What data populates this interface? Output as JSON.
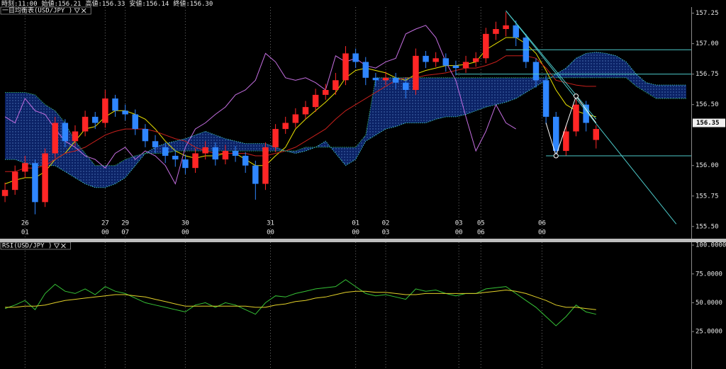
{
  "chart_data": [
    {
      "type": "candlestick",
      "title": "一目均衡表(USD/JPY )",
      "info": [
        "時刻:11:00",
        "始値:156.21",
        "高値:156.33",
        "安値:156.14",
        "終値:156.30"
      ],
      "up_color": "#ff2626",
      "down_color": "#2f86ff",
      "open": [
        155.75,
        155.8,
        155.95,
        156.02,
        155.7,
        156.1,
        156.35,
        156.2,
        156.28,
        156.4,
        156.35,
        156.55,
        156.45,
        156.42,
        156.3,
        156.2,
        156.15,
        156.08,
        156.05,
        155.98,
        156.1,
        156.15,
        156.05,
        156.12,
        156.08,
        156.0,
        155.85,
        156.15,
        156.3,
        156.35,
        156.42,
        156.48,
        156.58,
        156.62,
        156.7,
        156.92,
        156.85,
        156.72,
        156.7,
        156.72,
        156.68,
        156.62,
        156.9,
        156.85,
        156.88,
        156.82,
        156.8,
        156.85,
        156.88,
        157.08,
        157.12,
        157.15,
        157.05,
        156.85,
        156.7,
        156.4,
        156.12,
        156.28,
        156.5,
        156.21
      ],
      "high": [
        155.86,
        156.0,
        156.08,
        156.05,
        156.14,
        156.4,
        156.38,
        156.33,
        156.45,
        156.44,
        156.62,
        156.58,
        156.5,
        156.46,
        156.34,
        156.25,
        156.19,
        156.13,
        156.09,
        156.14,
        156.2,
        156.19,
        156.17,
        156.16,
        156.11,
        156.04,
        156.19,
        156.34,
        156.4,
        156.47,
        156.53,
        156.63,
        156.67,
        156.76,
        156.98,
        156.96,
        156.89,
        156.76,
        156.77,
        156.76,
        156.72,
        156.96,
        156.94,
        156.93,
        156.92,
        156.86,
        156.9,
        156.93,
        157.13,
        157.18,
        157.26,
        157.19,
        157.08,
        156.88,
        156.74,
        156.44,
        156.33,
        156.57,
        156.53,
        156.33
      ],
      "low": [
        155.7,
        155.76,
        155.9,
        155.6,
        155.66,
        156.06,
        156.15,
        156.16,
        156.24,
        156.3,
        156.31,
        156.4,
        156.37,
        156.25,
        156.15,
        156.1,
        156.02,
        155.99,
        155.93,
        155.94,
        156.05,
        156.0,
        156.01,
        156.03,
        155.94,
        155.72,
        155.8,
        156.11,
        156.26,
        156.31,
        156.38,
        156.44,
        156.54,
        156.58,
        156.66,
        156.8,
        156.66,
        156.65,
        156.66,
        156.63,
        156.55,
        156.58,
        156.8,
        156.81,
        156.77,
        156.74,
        156.76,
        156.81,
        156.84,
        157.03,
        157.06,
        156.98,
        156.8,
        156.64,
        156.34,
        156.06,
        156.08,
        156.24,
        156.28,
        156.14
      ],
      "close": [
        155.8,
        155.95,
        156.02,
        155.7,
        156.1,
        156.35,
        156.2,
        156.28,
        156.4,
        156.35,
        156.55,
        156.45,
        156.42,
        156.3,
        156.2,
        156.15,
        156.08,
        156.05,
        155.98,
        156.1,
        156.15,
        156.05,
        156.12,
        156.08,
        156.0,
        155.85,
        156.15,
        156.3,
        156.35,
        156.42,
        156.48,
        156.58,
        156.62,
        156.7,
        156.92,
        156.85,
        156.72,
        156.7,
        156.72,
        156.68,
        156.62,
        156.9,
        156.85,
        156.88,
        156.82,
        156.8,
        156.85,
        156.88,
        157.08,
        157.12,
        157.15,
        157.05,
        156.85,
        156.7,
        156.4,
        156.12,
        156.28,
        156.5,
        156.35,
        156.3
      ],
      "series": [
        {
          "color": "#e8e000",
          "values": [
            155.85,
            155.88,
            155.9,
            155.9,
            155.95,
            156.05,
            156.1,
            156.2,
            156.3,
            156.32,
            156.4,
            156.45,
            156.45,
            156.42,
            156.38,
            156.3,
            156.2,
            156.12,
            156.08,
            156.06,
            156.08,
            156.08,
            156.1,
            156.1,
            156.05,
            156.0,
            156.0,
            156.08,
            156.15,
            156.3,
            156.38,
            156.45,
            156.52,
            156.6,
            156.72,
            156.78,
            156.8,
            156.78,
            156.76,
            156.72,
            156.7,
            156.75,
            156.78,
            156.8,
            156.82,
            156.82,
            156.83,
            156.85,
            156.95,
            157.0,
            157.05,
            157.05,
            157.0,
            156.92,
            156.78,
            156.62,
            156.5,
            156.45,
            156.42,
            156.4,
            null,
            null,
            null,
            null,
            null,
            null,
            null,
            null,
            null
          ]
        },
        {
          "color": "#c8201c",
          "values": [
            155.95,
            155.95,
            155.98,
            155.98,
            156.0,
            156.05,
            156.1,
            156.12,
            156.15,
            156.2,
            156.25,
            156.28,
            156.3,
            156.3,
            156.3,
            156.28,
            156.25,
            156.22,
            156.2,
            156.15,
            156.12,
            156.1,
            156.1,
            156.1,
            156.1,
            156.08,
            156.08,
            156.1,
            156.12,
            156.15,
            156.2,
            156.25,
            156.3,
            156.38,
            156.45,
            156.5,
            156.55,
            156.6,
            156.65,
            156.7,
            156.72,
            156.72,
            156.74,
            156.75,
            156.76,
            156.78,
            156.8,
            156.8,
            156.82,
            156.85,
            156.9,
            156.9,
            156.9,
            156.88,
            156.8,
            156.7,
            156.68,
            156.66,
            156.65,
            156.65,
            null,
            null,
            null,
            null,
            null,
            null,
            null,
            null,
            null
          ]
        },
        {
          "color": "#c46ee0",
          "values": [
            156.4,
            156.35,
            156.55,
            156.45,
            156.42,
            156.3,
            156.2,
            156.15,
            156.08,
            156.05,
            155.98,
            156.1,
            156.15,
            156.05,
            156.12,
            156.08,
            156.0,
            155.85,
            156.15,
            156.3,
            156.35,
            156.42,
            156.48,
            156.58,
            156.62,
            156.7,
            156.92,
            156.85,
            156.72,
            156.7,
            156.72,
            156.68,
            156.62,
            156.9,
            156.85,
            156.88,
            156.82,
            156.8,
            156.85,
            156.88,
            157.08,
            157.12,
            157.15,
            157.05,
            156.85,
            156.7,
            156.4,
            156.12,
            156.28,
            156.5,
            156.35,
            156.3,
            null,
            null,
            null,
            null,
            null,
            null,
            null,
            null,
            null,
            null,
            null,
            null,
            null,
            null,
            null,
            null,
            null
          ]
        },
        {
          "color": "#3fc4c4",
          "style": "dotted",
          "values": [
            156.05,
            156.05,
            156.02,
            156.0,
            156.0,
            156.0,
            155.95,
            155.9,
            155.85,
            155.82,
            155.82,
            155.85,
            155.9,
            156.0,
            156.1,
            156.15,
            156.18,
            156.2,
            156.22,
            156.25,
            156.28,
            156.25,
            156.22,
            156.2,
            156.18,
            156.18,
            156.18,
            156.15,
            156.12,
            156.1,
            156.12,
            156.15,
            156.2,
            156.1,
            156.0,
            156.05,
            156.2,
            156.25,
            156.3,
            156.32,
            156.35,
            156.35,
            156.35,
            156.38,
            156.4,
            156.4,
            156.42,
            156.45,
            156.48,
            156.5,
            156.52,
            156.55,
            156.6,
            156.65,
            156.7,
            156.75,
            156.8,
            156.88,
            156.92,
            156.93,
            156.92,
            156.9,
            156.85,
            156.75,
            156.68,
            156.66,
            156.66,
            156.66,
            156.66
          ]
        },
        {
          "color": "#2fa862",
          "style": "dotted",
          "values": [
            156.6,
            156.6,
            156.6,
            156.58,
            156.5,
            156.45,
            156.35,
            156.2,
            156.1,
            156.0,
            156.0,
            156.0,
            156.05,
            156.08,
            156.1,
            156.1,
            156.1,
            156.12,
            156.12,
            156.12,
            156.12,
            156.12,
            156.12,
            156.12,
            156.12,
            156.12,
            156.12,
            156.12,
            156.12,
            156.12,
            156.15,
            156.15,
            156.15,
            156.15,
            156.15,
            156.15,
            156.25,
            156.72,
            156.72,
            156.72,
            156.72,
            156.72,
            156.72,
            156.72,
            156.72,
            156.72,
            156.72,
            156.72,
            156.72,
            156.72,
            156.72,
            156.72,
            156.72,
            156.72,
            156.72,
            156.72,
            156.72,
            156.72,
            156.72,
            156.72,
            156.72,
            156.72,
            156.72,
            156.65,
            156.6,
            156.55,
            156.55,
            156.55,
            156.55
          ]
        }
      ],
      "cloud": [
        3,
        4
      ],
      "cloud_color": "#0b2266",
      "levels": [
        {
          "start": 50,
          "value": 156.95
        },
        {
          "start": 45,
          "value": 156.75
        },
        {
          "start": 54,
          "value": 156.08
        }
      ],
      "level_color": "#4cc8c8",
      "trendlines": [
        {
          "x": [
            50,
            67
          ],
          "y": [
            157.27,
            155.52
          ]
        },
        {
          "x": [
            50,
            59
          ],
          "y": [
            157.27,
            156.38
          ]
        }
      ],
      "zigzag": {
        "x": [
          54,
          55,
          57,
          59
        ],
        "y": [
          156.35,
          156.08,
          156.57,
          156.35
        ],
        "markers": [
          1,
          2
        ]
      },
      "current_price": 156.35,
      "xlim": [
        -0.5,
        68.5
      ],
      "ylim": [
        155.4,
        157.3
      ],
      "yticks": [
        157.25,
        {
          "value": 157,
          "label": "157.00"
        },
        156.75,
        {
          "value": 156.5,
          "label": "156.50"
        },
        {
          "value": 156,
          "label": "156.00"
        },
        155.75,
        {
          "value": 155.5,
          "label": "155.50"
        }
      ],
      "xticks": [
        {
          "value": 2,
          "label": "26",
          "sublabel": "01"
        },
        {
          "value": 10,
          "label": "27",
          "sublabel": "00"
        },
        {
          "value": 12,
          "label": "29",
          "sublabel": "07"
        },
        {
          "value": 18,
          "label": "30",
          "sublabel": "00"
        },
        {
          "value": 26.5,
          "label": "31",
          "sublabel": "00"
        },
        {
          "value": 35,
          "label": "01",
          "sublabel": "00"
        },
        {
          "value": 38,
          "label": "02",
          "sublabel": "03"
        },
        {
          "value": 45.3,
          "label": "03",
          "sublabel": "00"
        },
        {
          "value": 47.5,
          "label": "05",
          "sublabel": "06"
        },
        {
          "value": 53.6,
          "label": "06",
          "sublabel": "00"
        }
      ],
      "grid": "x"
    },
    {
      "type": "line",
      "title": "RSI(USD/JPY )",
      "series": [
        {
          "color": "#36c236",
          "values": [
            45,
            48,
            52,
            44,
            58,
            66,
            60,
            58,
            62,
            57,
            64,
            60,
            58,
            54,
            50,
            48,
            46,
            44,
            42,
            48,
            50,
            46,
            50,
            48,
            44,
            40,
            50,
            56,
            55,
            58,
            60,
            62,
            63,
            64,
            70,
            64,
            58,
            56,
            57,
            55,
            53,
            62,
            60,
            61,
            58,
            56,
            58,
            58,
            62,
            63,
            64,
            58,
            52,
            46,
            38,
            30,
            38,
            48,
            42,
            40
          ]
        },
        {
          "color": "#e2d028",
          "values": [
            46,
            46,
            47,
            47,
            48,
            50,
            52,
            53,
            54,
            55,
            56,
            57,
            57,
            56,
            55,
            53,
            51,
            49,
            47,
            47,
            47,
            47,
            47,
            47,
            47,
            46,
            46,
            48,
            49,
            51,
            52,
            54,
            55,
            57,
            59,
            60,
            60,
            59,
            59,
            58,
            57,
            57,
            58,
            58,
            58,
            58,
            58,
            58,
            59,
            60,
            61,
            60,
            58,
            55,
            52,
            48,
            46,
            46,
            45,
            44
          ]
        }
      ],
      "xlim": [
        -0.5,
        68.5
      ],
      "ylim": [
        -7.5,
        102.5
      ],
      "yticks": [
        {
          "value": 100,
          "label": "100.0000"
        },
        {
          "value": 75,
          "label": "75.0000"
        },
        {
          "value": 50,
          "label": "50.0000"
        },
        {
          "value": 25,
          "label": "25.0000"
        }
      ]
    }
  ]
}
